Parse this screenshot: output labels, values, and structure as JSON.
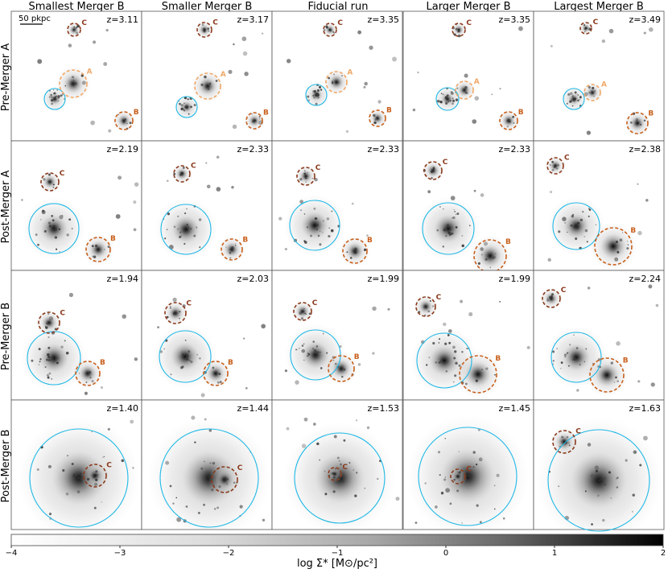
{
  "columns": [
    {
      "title": "Smallest Merger B"
    },
    {
      "title": "Smaller Merger B"
    },
    {
      "title": "Fiducial run"
    },
    {
      "title": "Larger Merger B"
    },
    {
      "title": "Largest Merger B"
    }
  ],
  "rows": [
    {
      "label": "Pre-Merger A"
    },
    {
      "label": "Post-Merger A"
    },
    {
      "label": "Pre-Merger B"
    },
    {
      "label": "Post-Merger B"
    }
  ],
  "redshifts": [
    [
      "z=3.11",
      "z=3.17",
      "z=3.35",
      "z=3.35",
      "z=3.49"
    ],
    [
      "z=2.19",
      "z=2.33",
      "z=2.33",
      "z=2.33",
      "z=2.38"
    ],
    [
      "z=1.94",
      "z=2.03",
      "z=1.99",
      "z=1.99",
      "z=2.24"
    ],
    [
      "z=1.40",
      "z=1.44",
      "z=1.53",
      "z=1.45",
      "z=1.63"
    ]
  ],
  "scale_bar": {
    "label": "50 pkpc"
  },
  "halo_labels": {
    "A": "A",
    "B": "B",
    "C": "C"
  },
  "colorbar": {
    "label": "log Σ* [M⊙/pc²]",
    "ticks": [
      "−4",
      "−3",
      "−2",
      "−1",
      "0",
      "1",
      "2"
    ],
    "range": [
      -4,
      2
    ]
  },
  "colors": {
    "main_halo": "#1fb8e6",
    "halo_A": "#f0a868",
    "halo_B": "#c8601c",
    "halo_C": "#8a3a1c",
    "panel_border": "#555555"
  }
}
